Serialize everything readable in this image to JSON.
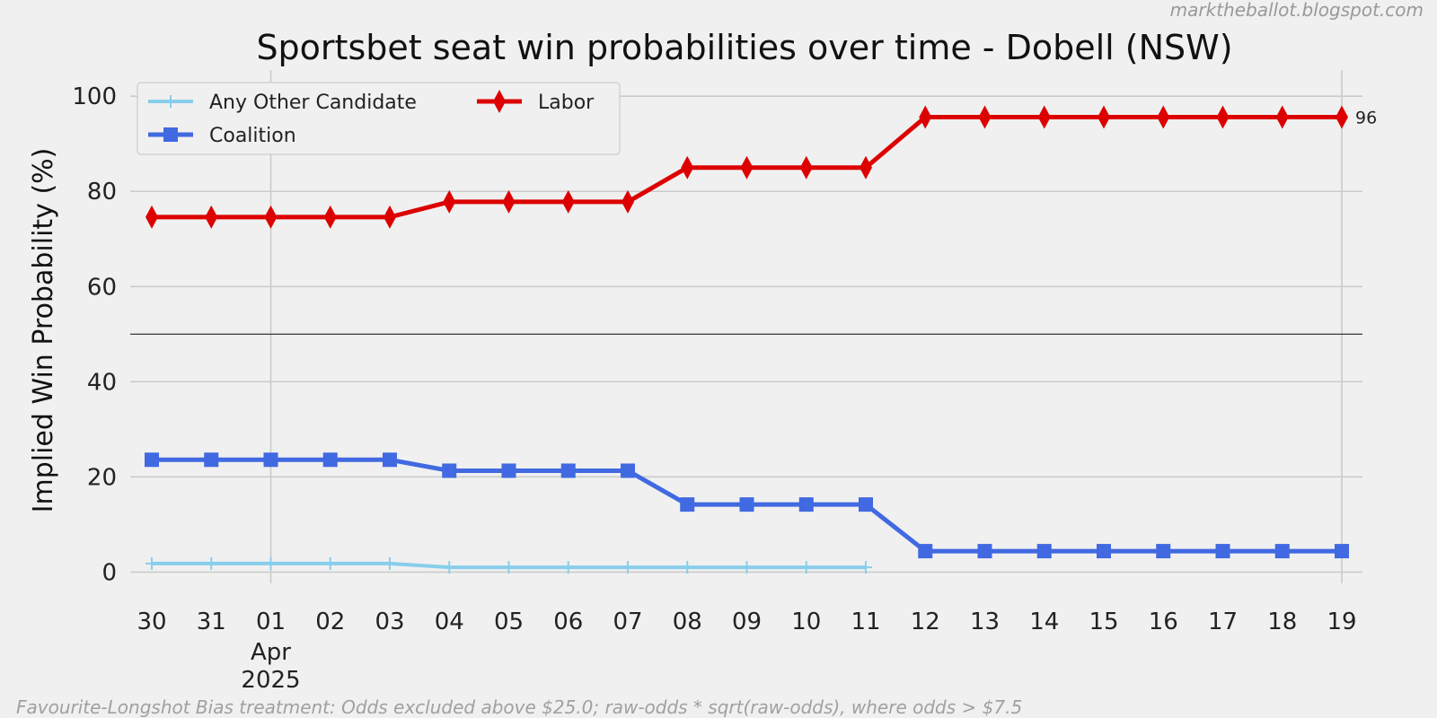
{
  "credit": "marktheballot.blogspot.com",
  "footnote": "Favourite-Longshot Bias treatment: Odds excluded above $25.0; raw-odds * sqrt(raw-odds), where odds > $7.5",
  "chart_data": {
    "type": "line",
    "title": "Sportsbet seat win probabilities over time - Dobell (NSW)",
    "xlabel": "",
    "ylabel": "Implied Win Probability (%)",
    "ylim": [
      -2,
      104
    ],
    "yticks": [
      0,
      20,
      40,
      60,
      80,
      100
    ],
    "reference_line": 50,
    "grid": true,
    "legend_position": "top-left",
    "x": [
      "30",
      "31",
      "01",
      "02",
      "03",
      "04",
      "05",
      "06",
      "07",
      "08",
      "09",
      "10",
      "11",
      "12",
      "13",
      "14",
      "15",
      "16",
      "17",
      "18",
      "19"
    ],
    "x_month_label": "Apr",
    "x_year_label": "2025",
    "series": [
      {
        "name": "Any Other Candidate",
        "color": "#87ceeb",
        "marker": "plus",
        "values": [
          1.8,
          1.8,
          1.8,
          1.8,
          1.8,
          1.0,
          1.0,
          1.0,
          1.0,
          1.0,
          1.0,
          1.0,
          1.0,
          null,
          null,
          null,
          null,
          null,
          null,
          null,
          null
        ]
      },
      {
        "name": "Coalition",
        "color": "#4169e1",
        "marker": "square",
        "values": [
          23.6,
          23.6,
          23.6,
          23.6,
          23.6,
          21.3,
          21.3,
          21.3,
          21.3,
          14.2,
          14.2,
          14.2,
          14.2,
          4.4,
          4.4,
          4.4,
          4.4,
          4.4,
          4.4,
          4.4,
          4.4
        ]
      },
      {
        "name": "Labor",
        "color": "#dd0000",
        "marker": "diamond",
        "values": [
          74.6,
          74.6,
          74.6,
          74.6,
          74.6,
          77.8,
          77.8,
          77.8,
          77.8,
          85.0,
          85.0,
          85.0,
          85.0,
          95.6,
          95.6,
          95.6,
          95.6,
          95.6,
          95.6,
          95.6,
          95.6
        ]
      }
    ],
    "end_label": "96"
  }
}
